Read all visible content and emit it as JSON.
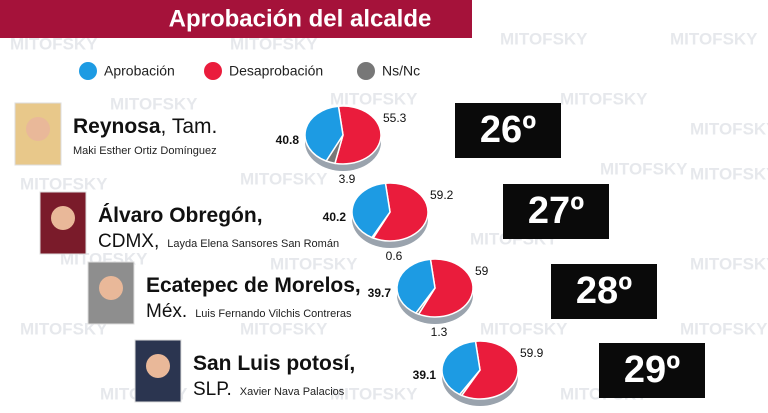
{
  "title": "Aprobación del alcalde",
  "watermark": "MITOFSKY",
  "legend": [
    {
      "label": "Aprobación",
      "color": "#1d9be3"
    },
    {
      "label": "Desaprobación",
      "color": "#ea1c3c"
    },
    {
      "label": "Ns/Nc",
      "color": "#777777"
    }
  ],
  "rows": [
    {
      "city": "Reynosa",
      "state": ", Tam.",
      "mayor": "Maki Esther Ortiz Domínguez",
      "rank": "26º"
    },
    {
      "city": "Álvaro Obregón,",
      "state": "CDMX,",
      "mayor": "Layda Elena Sansores San Román",
      "rank": "27º"
    },
    {
      "city": "Ecatepec de Morelos,",
      "state": "Méx.",
      "mayor": "Luis Fernando Vilchis Contreras",
      "rank": "28º"
    },
    {
      "city": "San Luis potosí,",
      "state": "SLP.",
      "mayor": "Xavier Nava Palacios",
      "rank": "29º"
    }
  ],
  "chart_data": [
    {
      "type": "pie",
      "values": [
        40.8,
        55.3,
        3.9
      ]
    },
    {
      "type": "pie",
      "values": [
        40.2,
        59.2,
        0.6
      ]
    },
    {
      "type": "pie",
      "values": [
        39.7,
        59.0,
        1.3
      ]
    },
    {
      "type": "pie",
      "values": [
        39.1,
        59.9,
        1.0
      ]
    }
  ]
}
